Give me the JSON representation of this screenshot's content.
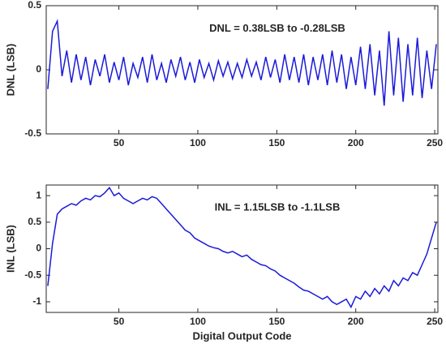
{
  "chart_data": [
    {
      "type": "line",
      "ylabel": "DNL (LSB)",
      "annotation": "DNL = 0.38LSB to -0.28LSB",
      "xlim": [
        4,
        252
      ],
      "xticks": [
        50,
        100,
        150,
        200,
        250
      ],
      "ylim": [
        -0.5,
        0.5
      ],
      "yticks": [
        -0.5,
        0,
        0.5
      ],
      "x": [
        5,
        8,
        11,
        14,
        17,
        20,
        23,
        26,
        29,
        32,
        35,
        38,
        41,
        44,
        47,
        50,
        53,
        56,
        59,
        62,
        65,
        68,
        71,
        74,
        77,
        80,
        83,
        86,
        89,
        92,
        95,
        98,
        101,
        104,
        107,
        110,
        113,
        116,
        119,
        122,
        125,
        128,
        131,
        134,
        137,
        140,
        143,
        146,
        149,
        152,
        155,
        158,
        161,
        164,
        167,
        170,
        173,
        176,
        179,
        182,
        185,
        188,
        191,
        194,
        197,
        200,
        203,
        206,
        209,
        212,
        215,
        218,
        221,
        224,
        227,
        230,
        233,
        236,
        239,
        242,
        245,
        248,
        251
      ],
      "series": [
        {
          "name": "DNL",
          "color": "#1a1ad9",
          "values": [
            -0.15,
            0.3,
            0.38,
            -0.05,
            0.15,
            -0.1,
            0.12,
            -0.08,
            0.1,
            -0.12,
            0.08,
            -0.05,
            0.12,
            -0.1,
            0.06,
            -0.08,
            0.1,
            -0.12,
            0.05,
            -0.06,
            0.1,
            -0.1,
            0.12,
            -0.08,
            0.05,
            -0.1,
            0.08,
            -0.05,
            0.1,
            -0.08,
            0.06,
            -0.1,
            0.08,
            -0.06,
            0.05,
            -0.08,
            0.07,
            -0.05,
            0.06,
            -0.07,
            0.05,
            -0.06,
            0.08,
            -0.05,
            0.06,
            -0.08,
            0.1,
            -0.06,
            0.08,
            -0.1,
            0.12,
            -0.08,
            0.1,
            -0.1,
            0.12,
            -0.12,
            0.1,
            -0.08,
            0.12,
            -0.12,
            0.15,
            -0.1,
            0.12,
            -0.15,
            0.1,
            -0.12,
            0.18,
            -0.15,
            0.2,
            -0.2,
            0.15,
            -0.28,
            0.3,
            -0.2,
            0.25,
            -0.25,
            0.2,
            -0.2,
            0.25,
            -0.22,
            0.15,
            -0.15,
            0.2
          ]
        }
      ]
    },
    {
      "type": "line",
      "ylabel": "INL (LSB)",
      "xlabel": "Digital Output Code",
      "annotation": "INL = 1.15LSB to -1.1LSB",
      "xlim": [
        4,
        252
      ],
      "xticks": [
        50,
        100,
        150,
        200,
        250
      ],
      "ylim": [
        -1.2,
        1.2
      ],
      "yticks": [
        -1,
        -0.5,
        0,
        0.5,
        1
      ],
      "x": [
        5,
        8,
        11,
        14,
        17,
        20,
        23,
        26,
        29,
        32,
        35,
        38,
        41,
        44,
        47,
        50,
        53,
        56,
        59,
        62,
        65,
        68,
        71,
        74,
        77,
        80,
        83,
        86,
        89,
        92,
        95,
        98,
        101,
        104,
        107,
        110,
        113,
        116,
        119,
        122,
        125,
        128,
        131,
        134,
        137,
        140,
        143,
        146,
        149,
        152,
        155,
        158,
        161,
        164,
        167,
        170,
        173,
        176,
        179,
        182,
        185,
        188,
        191,
        194,
        197,
        200,
        203,
        206,
        209,
        212,
        215,
        218,
        221,
        224,
        227,
        230,
        233,
        236,
        239,
        242,
        245,
        248,
        251
      ],
      "series": [
        {
          "name": "INL",
          "color": "#1a1ad9",
          "values": [
            -0.7,
            0.1,
            0.65,
            0.75,
            0.8,
            0.85,
            0.82,
            0.9,
            0.95,
            0.92,
            1.0,
            0.98,
            1.05,
            1.15,
            1.0,
            1.05,
            0.95,
            0.9,
            0.85,
            0.9,
            0.95,
            0.92,
            0.98,
            0.95,
            0.85,
            0.75,
            0.65,
            0.55,
            0.45,
            0.35,
            0.3,
            0.2,
            0.15,
            0.1,
            0.05,
            0.02,
            0.0,
            -0.05,
            -0.08,
            -0.05,
            -0.1,
            -0.15,
            -0.12,
            -0.2,
            -0.25,
            -0.3,
            -0.32,
            -0.38,
            -0.42,
            -0.5,
            -0.55,
            -0.6,
            -0.65,
            -0.72,
            -0.78,
            -0.8,
            -0.85,
            -0.9,
            -0.95,
            -0.9,
            -1.0,
            -1.05,
            -1.0,
            -0.95,
            -1.1,
            -0.9,
            -0.95,
            -0.8,
            -0.9,
            -0.75,
            -0.85,
            -0.7,
            -0.8,
            -0.6,
            -0.7,
            -0.55,
            -0.6,
            -0.45,
            -0.5,
            -0.3,
            -0.1,
            0.2,
            0.5
          ]
        }
      ]
    }
  ]
}
